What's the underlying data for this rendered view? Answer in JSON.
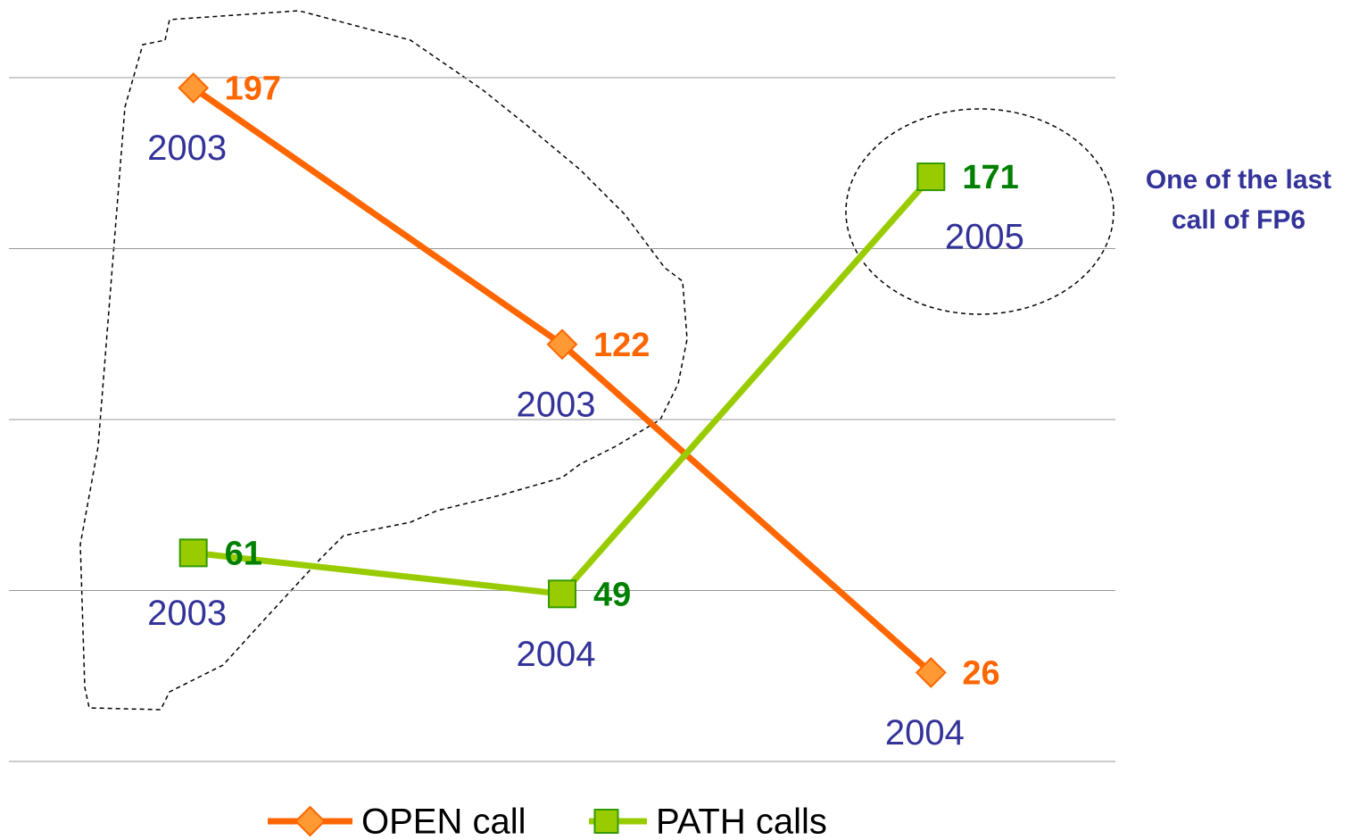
{
  "chart_data": {
    "type": "line",
    "categories": [
      null,
      null,
      null
    ],
    "series": [
      {
        "name": "OPEN call",
        "color": "#ff6600",
        "marker": "diamond",
        "marker_color": "#ff9933",
        "label_color": "#ff6600",
        "values": [
          197,
          122,
          26
        ],
        "point_labels": [
          "2003",
          "2003",
          "2004"
        ]
      },
      {
        "name": "PATH calls",
        "color": "#99cc00",
        "marker": "square",
        "marker_color": "#99cc00",
        "label_color": "#008000",
        "values": [
          61,
          49,
          171
        ],
        "point_labels": [
          "2003",
          "2004",
          "2005"
        ]
      }
    ],
    "ylim": [
      0,
      200
    ],
    "yticks": [
      0,
      50,
      100,
      150,
      200
    ],
    "grid": true,
    "annotation": [
      "One of the last",
      "call of FP6"
    ],
    "legend": "bottom"
  }
}
